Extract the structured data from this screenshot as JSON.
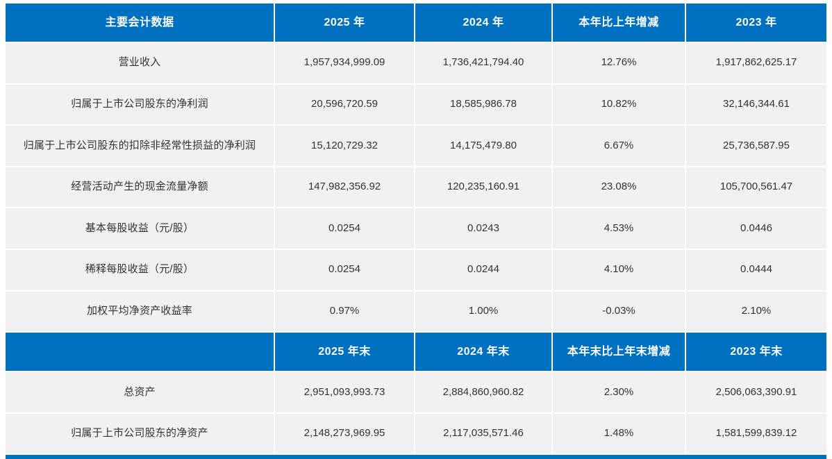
{
  "table": {
    "accent_color": "#0070C0",
    "row_background": "#f1f1f1",
    "header1": {
      "col0": "主要会计数据",
      "cols": [
        "2025 年",
        "2024 年",
        "本年比上年增减",
        "2023 年"
      ]
    },
    "rows1": [
      {
        "label": "营业收入",
        "values": [
          "1,957,934,999.09",
          "1,736,421,794.40",
          "12.76%",
          "1,917,862,625.17"
        ]
      },
      {
        "label": "归属于上市公司股东的净利润",
        "values": [
          "20,596,720.59",
          "18,585,986.78",
          "10.82%",
          "32,146,344.61"
        ]
      },
      {
        "label": "归属于上市公司股东的扣除非经常性损益的净利润",
        "values": [
          "15,120,729.32",
          "14,175,479.80",
          "6.67%",
          "25,736,587.95"
        ]
      },
      {
        "label": "经营活动产生的现金流量净额",
        "values": [
          "147,982,356.92",
          "120,235,160.91",
          "23.08%",
          "105,700,561.47"
        ]
      },
      {
        "label": "基本每股收益（元/股）",
        "values": [
          "0.0254",
          "0.0243",
          "4.53%",
          "0.0446"
        ]
      },
      {
        "label": "稀释每股收益（元/股）",
        "values": [
          "0.0254",
          "0.0244",
          "4.10%",
          "0.0444"
        ]
      },
      {
        "label": "加权平均净资产收益率",
        "values": [
          "0.97%",
          "1.00%",
          "-0.03%",
          "2.10%"
        ]
      }
    ],
    "header2": {
      "col0": "",
      "cols": [
        "2025 年末",
        "2024 年末",
        "本年末比上年末增减",
        "2023 年末"
      ]
    },
    "rows2": [
      {
        "label": "总资产",
        "values": [
          "2,951,093,993.73",
          "2,884,860,960.82",
          "2.30%",
          "2,506,063,390.91"
        ]
      },
      {
        "label": "归属于上市公司股东的净资产",
        "values": [
          "2,148,273,969.95",
          "2,117,035,571.46",
          "1.48%",
          "1,581,599,839.12"
        ]
      }
    ]
  }
}
